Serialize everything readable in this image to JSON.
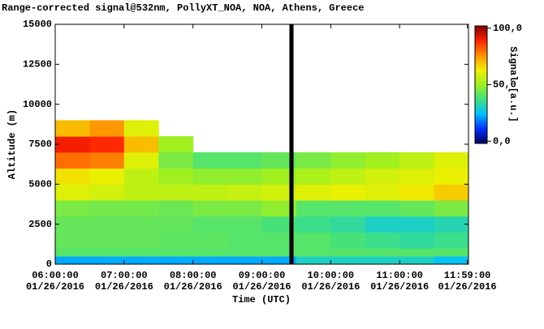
{
  "chart_data": {
    "type": "heatmap",
    "title": "Range-corrected signal@532nm, PollyXT_NOA, NOA, Athens, Greece",
    "x_label": "Time (UTC)",
    "y_label": "Altitude (m)",
    "colorbar_label": "Signal [a.u.]",
    "xlim": [
      6,
      12
    ],
    "xticks": [
      {
        "value": 6,
        "label": "06:00:00",
        "date": "01/26/2016"
      },
      {
        "value": 7,
        "label": "07:00:00",
        "date": "01/26/2016"
      },
      {
        "value": 8,
        "label": "08:00:00",
        "date": "01/26/2016"
      },
      {
        "value": 9,
        "label": "09:00:00",
        "date": "01/26/2016"
      },
      {
        "value": 10,
        "label": "10:00:00",
        "date": "01/26/2016"
      },
      {
        "value": 11,
        "label": "11:00:00",
        "date": "01/26/2016"
      },
      {
        "value": 11.983,
        "label": "11:59:00",
        "date": "01/26/2016"
      }
    ],
    "ylim": [
      0,
      15000
    ],
    "yticks": [
      0,
      2500,
      5000,
      7500,
      10000,
      12500,
      15000
    ],
    "clim": [
      -2,
      102
    ],
    "cticks": [
      {
        "value": 100,
        "label": "100,0"
      },
      {
        "value": 50,
        "label": "50,0"
      },
      {
        "value": 0,
        "label": "0,0"
      }
    ],
    "colormap": [
      "#000060",
      "#0030ff",
      "#00c0ff",
      "#40e080",
      "#a0f020",
      "#f0f000",
      "#ff9000",
      "#ff2000",
      "#800000"
    ],
    "gap_x": [
      9.4,
      9.46
    ],
    "x_edges": [
      6,
      6.5,
      7,
      7.5,
      8,
      8.5,
      9,
      9.5,
      10,
      10.5,
      11,
      11.5,
      12
    ],
    "y_edges": [
      0,
      500,
      1000,
      2000,
      3000,
      4000,
      5000,
      6000,
      7000,
      8000,
      9000,
      10000,
      11000,
      12000,
      13000,
      14000,
      15000
    ],
    "values": [
      [
        22,
        22,
        22,
        22,
        22,
        22,
        22,
        30,
        30,
        30,
        30,
        25
      ],
      [
        40,
        40,
        40,
        40,
        40,
        40,
        40,
        40,
        40,
        40,
        40,
        40
      ],
      [
        42,
        42,
        42,
        41,
        41,
        40,
        40,
        40,
        38,
        36,
        34,
        36
      ],
      [
        42,
        42,
        42,
        42,
        40,
        40,
        38,
        36,
        34,
        30,
        30,
        32
      ],
      [
        45,
        44,
        44,
        43,
        45,
        45,
        48,
        40,
        40,
        40,
        42,
        45
      ],
      [
        60,
        58,
        55,
        55,
        55,
        56,
        58,
        60,
        62,
        60,
        64,
        68
      ],
      [
        65,
        62,
        55,
        50,
        48,
        48,
        50,
        52,
        55,
        58,
        60,
        62
      ],
      [
        80,
        78,
        60,
        45,
        40,
        40,
        42,
        45,
        48,
        50,
        55,
        60
      ],
      [
        90,
        88,
        70,
        50,
        null,
        null,
        null,
        null,
        null,
        null,
        null,
        null
      ],
      [
        70,
        75,
        60,
        null,
        null,
        null,
        null,
        null,
        null,
        null,
        null,
        null
      ],
      [
        null,
        null,
        null,
        null,
        null,
        null,
        null,
        null,
        null,
        null,
        null,
        null
      ],
      [
        null,
        null,
        null,
        null,
        null,
        null,
        null,
        null,
        null,
        null,
        null,
        null
      ],
      [
        null,
        null,
        null,
        null,
        null,
        null,
        null,
        null,
        null,
        null,
        null,
        null
      ],
      [
        null,
        null,
        null,
        null,
        null,
        null,
        null,
        null,
        null,
        null,
        null,
        null
      ],
      [
        null,
        null,
        null,
        null,
        null,
        null,
        null,
        null,
        null,
        null,
        null,
        null
      ],
      [
        null,
        null,
        null,
        null,
        null,
        null,
        null,
        null,
        null,
        null,
        null,
        null
      ]
    ]
  }
}
